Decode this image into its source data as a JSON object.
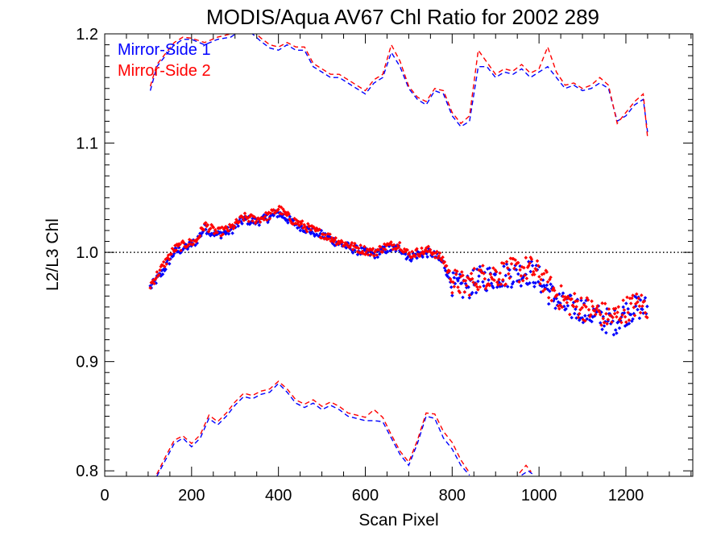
{
  "chart_data": {
    "type": "scatter",
    "title": "MODIS/Aqua AV67 Chl Ratio for 2002 289",
    "xlabel": "Scan Pixel",
    "ylabel": "L2/L3 Chl",
    "xlim": [
      0,
      1354
    ],
    "ylim": [
      0.795,
      1.2
    ],
    "xticks": [
      0,
      200,
      400,
      600,
      800,
      1000,
      1200
    ],
    "xtick_labels": [
      "0",
      "200",
      "400",
      "600",
      "800",
      "1000",
      "1200"
    ],
    "yticks": [
      0.8,
      0.9,
      1.0,
      1.1,
      1.2
    ],
    "ytick_labels": [
      "0.8",
      "0.9",
      "1.0",
      "1.1",
      "1.2"
    ],
    "reference_line": 1.0,
    "legend_position": "top-left",
    "colors": {
      "side1": "#0000ff",
      "side2": "#ff0000",
      "axis": "#000000"
    },
    "series": [
      {
        "name": "Mirror-Side 1",
        "color": "#0000ff",
        "mean_points": [
          [
            105,
            0.968
          ],
          [
            130,
            0.98
          ],
          [
            160,
            1.0
          ],
          [
            190,
            1.005
          ],
          [
            210,
            1.01
          ],
          [
            230,
            1.022
          ],
          [
            260,
            1.016
          ],
          [
            290,
            1.02
          ],
          [
            320,
            1.03
          ],
          [
            350,
            1.028
          ],
          [
            380,
            1.032
          ],
          [
            400,
            1.036
          ],
          [
            430,
            1.028
          ],
          [
            470,
            1.02
          ],
          [
            500,
            1.016
          ],
          [
            540,
            1.008
          ],
          [
            580,
            1.002
          ],
          [
            620,
            0.998
          ],
          [
            650,
            1.003
          ],
          [
            680,
            1.004
          ],
          [
            700,
            0.995
          ],
          [
            720,
            0.998
          ],
          [
            750,
            1.0
          ],
          [
            780,
            0.99
          ],
          [
            800,
            0.97
          ],
          [
            830,
            0.967
          ],
          [
            860,
            0.975
          ],
          [
            900,
            0.978
          ],
          [
            940,
            0.98
          ],
          [
            980,
            0.982
          ],
          [
            1000,
            0.976
          ],
          [
            1030,
            0.96
          ],
          [
            1060,
            0.95
          ],
          [
            1100,
            0.948
          ],
          [
            1140,
            0.94
          ],
          [
            1170,
            0.935
          ],
          [
            1200,
            0.945
          ],
          [
            1230,
            0.95
          ],
          [
            1250,
            0.948
          ]
        ],
        "upper_dashed": [
          [
            105,
            1.148
          ],
          [
            120,
            1.17
          ],
          [
            140,
            1.18
          ],
          [
            160,
            1.19
          ],
          [
            180,
            1.195
          ],
          [
            200,
            1.195
          ],
          [
            230,
            1.19
          ],
          [
            260,
            1.195
          ],
          [
            290,
            1.197
          ],
          [
            320,
            1.205
          ],
          [
            340,
            1.2
          ],
          [
            360,
            1.193
          ],
          [
            380,
            1.187
          ],
          [
            400,
            1.185
          ],
          [
            420,
            1.19
          ],
          [
            440,
            1.185
          ],
          [
            460,
            1.185
          ],
          [
            480,
            1.17
          ],
          [
            500,
            1.165
          ],
          [
            520,
            1.16
          ],
          [
            540,
            1.16
          ],
          [
            560,
            1.155
          ],
          [
            580,
            1.15
          ],
          [
            600,
            1.145
          ],
          [
            620,
            1.155
          ],
          [
            640,
            1.16
          ],
          [
            660,
            1.183
          ],
          [
            680,
            1.17
          ],
          [
            700,
            1.15
          ],
          [
            720,
            1.14
          ],
          [
            740,
            1.135
          ],
          [
            760,
            1.148
          ],
          [
            780,
            1.145
          ],
          [
            800,
            1.125
          ],
          [
            820,
            1.115
          ],
          [
            840,
            1.12
          ],
          [
            860,
            1.17
          ],
          [
            880,
            1.17
          ],
          [
            900,
            1.16
          ],
          [
            920,
            1.165
          ],
          [
            940,
            1.163
          ],
          [
            960,
            1.168
          ],
          [
            980,
            1.16
          ],
          [
            1000,
            1.165
          ],
          [
            1020,
            1.17
          ],
          [
            1040,
            1.16
          ],
          [
            1060,
            1.15
          ],
          [
            1080,
            1.153
          ],
          [
            1100,
            1.148
          ],
          [
            1120,
            1.15
          ],
          [
            1140,
            1.155
          ],
          [
            1160,
            1.15
          ],
          [
            1180,
            1.12
          ],
          [
            1200,
            1.125
          ],
          [
            1220,
            1.135
          ],
          [
            1240,
            1.14
          ],
          [
            1250,
            1.11
          ]
        ],
        "lower_dashed_segments": [
          [
            [
              120,
              0.795
            ],
            [
              140,
              0.81
            ],
            [
              160,
              0.825
            ],
            [
              180,
              0.83
            ],
            [
              200,
              0.822
            ],
            [
              220,
              0.83
            ],
            [
              240,
              0.848
            ],
            [
              260,
              0.842
            ],
            [
              280,
              0.85
            ],
            [
              300,
              0.86
            ],
            [
              320,
              0.868
            ],
            [
              340,
              0.866
            ],
            [
              360,
              0.87
            ],
            [
              380,
              0.872
            ],
            [
              400,
              0.88
            ],
            [
              420,
              0.872
            ],
            [
              440,
              0.862
            ],
            [
              460,
              0.858
            ],
            [
              480,
              0.862
            ],
            [
              500,
              0.856
            ],
            [
              520,
              0.86
            ],
            [
              540,
              0.856
            ],
            [
              560,
              0.85
            ],
            [
              580,
              0.848
            ],
            [
              600,
              0.846
            ],
            [
              620,
              0.846
            ],
            [
              640,
              0.845
            ],
            [
              660,
              0.83
            ],
            [
              680,
              0.815
            ],
            [
              700,
              0.805
            ],
            [
              720,
              0.825
            ],
            [
              740,
              0.85
            ],
            [
              760,
              0.848
            ],
            [
              780,
              0.83
            ],
            [
              800,
              0.82
            ],
            [
              820,
              0.805
            ],
            [
              840,
              0.796
            ]
          ],
          [
            [
              960,
              0.796
            ],
            [
              975,
              0.8
            ],
            [
              985,
              0.797
            ]
          ]
        ]
      },
      {
        "name": "Mirror-Side 2",
        "color": "#ff0000",
        "mean_points": [
          [
            105,
            0.97
          ],
          [
            130,
            0.985
          ],
          [
            160,
            1.003
          ],
          [
            190,
            1.008
          ],
          [
            210,
            1.01
          ],
          [
            230,
            1.025
          ],
          [
            260,
            1.018
          ],
          [
            290,
            1.022
          ],
          [
            320,
            1.032
          ],
          [
            350,
            1.03
          ],
          [
            380,
            1.034
          ],
          [
            400,
            1.04
          ],
          [
            430,
            1.03
          ],
          [
            470,
            1.022
          ],
          [
            500,
            1.017
          ],
          [
            540,
            1.01
          ],
          [
            580,
            1.004
          ],
          [
            620,
            1.0
          ],
          [
            650,
            1.006
          ],
          [
            680,
            1.007
          ],
          [
            700,
            0.998
          ],
          [
            720,
            1.0
          ],
          [
            750,
            1.002
          ],
          [
            780,
            0.993
          ],
          [
            800,
            0.974
          ],
          [
            830,
            0.97
          ],
          [
            860,
            0.977
          ],
          [
            900,
            0.98
          ],
          [
            940,
            0.983
          ],
          [
            980,
            0.985
          ],
          [
            1000,
            0.98
          ],
          [
            1030,
            0.965
          ],
          [
            1060,
            0.955
          ],
          [
            1100,
            0.95
          ],
          [
            1140,
            0.944
          ],
          [
            1170,
            0.94
          ],
          [
            1200,
            0.948
          ],
          [
            1230,
            0.953
          ],
          [
            1250,
            0.95
          ]
        ],
        "upper_dashed": [
          [
            105,
            1.152
          ],
          [
            120,
            1.172
          ],
          [
            140,
            1.182
          ],
          [
            160,
            1.192
          ],
          [
            180,
            1.197
          ],
          [
            200,
            1.196
          ],
          [
            230,
            1.192
          ],
          [
            260,
            1.197
          ],
          [
            290,
            1.2
          ],
          [
            320,
            1.208
          ],
          [
            340,
            1.203
          ],
          [
            360,
            1.196
          ],
          [
            380,
            1.19
          ],
          [
            400,
            1.188
          ],
          [
            420,
            1.192
          ],
          [
            440,
            1.188
          ],
          [
            460,
            1.188
          ],
          [
            480,
            1.173
          ],
          [
            500,
            1.168
          ],
          [
            520,
            1.163
          ],
          [
            540,
            1.163
          ],
          [
            560,
            1.158
          ],
          [
            580,
            1.153
          ],
          [
            600,
            1.148
          ],
          [
            620,
            1.158
          ],
          [
            640,
            1.163
          ],
          [
            660,
            1.19
          ],
          [
            680,
            1.175
          ],
          [
            700,
            1.152
          ],
          [
            720,
            1.142
          ],
          [
            740,
            1.138
          ],
          [
            760,
            1.15
          ],
          [
            780,
            1.148
          ],
          [
            800,
            1.128
          ],
          [
            820,
            1.118
          ],
          [
            840,
            1.125
          ],
          [
            860,
            1.185
          ],
          [
            880,
            1.174
          ],
          [
            900,
            1.163
          ],
          [
            920,
            1.168
          ],
          [
            940,
            1.166
          ],
          [
            960,
            1.172
          ],
          [
            980,
            1.164
          ],
          [
            1000,
            1.168
          ],
          [
            1020,
            1.188
          ],
          [
            1040,
            1.165
          ],
          [
            1060,
            1.153
          ],
          [
            1080,
            1.155
          ],
          [
            1100,
            1.15
          ],
          [
            1120,
            1.153
          ],
          [
            1140,
            1.16
          ],
          [
            1160,
            1.153
          ],
          [
            1180,
            1.118
          ],
          [
            1200,
            1.128
          ],
          [
            1220,
            1.138
          ],
          [
            1240,
            1.145
          ],
          [
            1250,
            1.105
          ]
        ],
        "lower_dashed_segments": [
          [
            [
              120,
              0.797
            ],
            [
              140,
              0.813
            ],
            [
              160,
              0.828
            ],
            [
              180,
              0.832
            ],
            [
              200,
              0.825
            ],
            [
              220,
              0.833
            ],
            [
              240,
              0.851
            ],
            [
              260,
              0.845
            ],
            [
              280,
              0.853
            ],
            [
              300,
              0.863
            ],
            [
              320,
              0.871
            ],
            [
              340,
              0.869
            ],
            [
              360,
              0.873
            ],
            [
              380,
              0.875
            ],
            [
              400,
              0.882
            ],
            [
              420,
              0.875
            ],
            [
              440,
              0.865
            ],
            [
              460,
              0.861
            ],
            [
              480,
              0.865
            ],
            [
              500,
              0.859
            ],
            [
              520,
              0.863
            ],
            [
              540,
              0.859
            ],
            [
              560,
              0.853
            ],
            [
              580,
              0.851
            ],
            [
              600,
              0.849
            ],
            [
              620,
              0.856
            ],
            [
              640,
              0.849
            ],
            [
              660,
              0.833
            ],
            [
              680,
              0.818
            ],
            [
              700,
              0.808
            ],
            [
              720,
              0.828
            ],
            [
              740,
              0.853
            ],
            [
              760,
              0.852
            ],
            [
              780,
              0.836
            ],
            [
              800,
              0.826
            ],
            [
              820,
              0.81
            ],
            [
              840,
              0.798
            ]
          ],
          [
            [
              955,
              0.798
            ],
            [
              970,
              0.805
            ],
            [
              982,
              0.799
            ]
          ]
        ]
      }
    ]
  }
}
